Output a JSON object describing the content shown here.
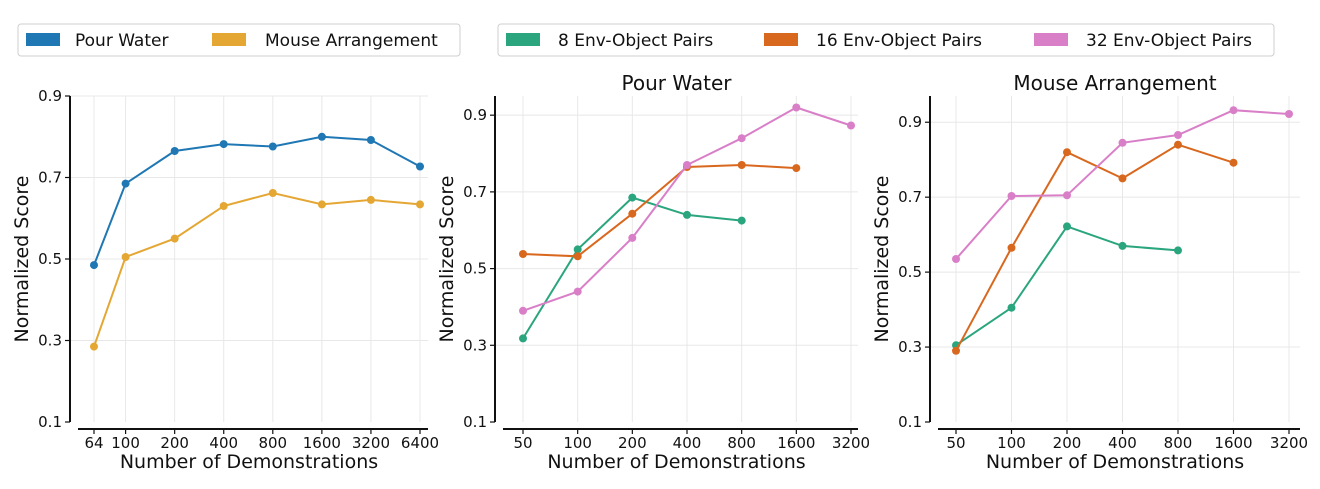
{
  "legends": [
    {
      "items": [
        {
          "label": "Pour Water",
          "color": "#1f77b4"
        },
        {
          "label": "Mouse Arrangement",
          "color": "#e5a734"
        }
      ]
    },
    {
      "items": [
        {
          "label": "8 Env-Object Pairs",
          "color": "#2aa57e"
        },
        {
          "label": "16 Env-Object Pairs",
          "color": "#d9681f"
        },
        {
          "label": "32 Env-Object Pairs",
          "color": "#d97fc8"
        }
      ]
    }
  ],
  "chart_data": [
    {
      "type": "line",
      "title": "",
      "xlabel": "Number of Demonstrations",
      "ylabel": "Normalized Score",
      "categories": [
        "64",
        "100",
        "200",
        "400",
        "800",
        "1600",
        "3200",
        "6400"
      ],
      "x_scale": "log",
      "yticks": [
        "0.1",
        "0.3",
        "0.5",
        "0.7",
        "0.9"
      ],
      "ylim": [
        0.1,
        0.9
      ],
      "grid": true,
      "series": [
        {
          "name": "Pour Water",
          "color": "#1f77b4",
          "values": [
            0.485,
            0.685,
            0.765,
            0.782,
            0.776,
            0.8,
            0.792,
            0.727
          ]
        },
        {
          "name": "Mouse Arrangement",
          "color": "#e5a734",
          "values": [
            0.285,
            0.505,
            0.55,
            0.63,
            0.662,
            0.634,
            0.645,
            0.634
          ]
        }
      ]
    },
    {
      "type": "line",
      "title": "Pour Water",
      "xlabel": "Number of Demonstrations",
      "ylabel": "Normalized Score",
      "categories": [
        "50",
        "100",
        "200",
        "400",
        "800",
        "1600",
        "3200"
      ],
      "x_scale": "log",
      "yticks": [
        "0.1",
        "0.3",
        "0.5",
        "0.7",
        "0.9"
      ],
      "ylim": [
        0.1,
        0.95
      ],
      "grid": true,
      "series": [
        {
          "name": "8 Env-Object Pairs",
          "color": "#2aa57e",
          "values": [
            0.318,
            0.55,
            0.685,
            0.64,
            0.625,
            null,
            null
          ]
        },
        {
          "name": "16 Env-Object Pairs",
          "color": "#d9681f",
          "values": [
            0.538,
            0.532,
            0.643,
            0.765,
            0.77,
            0.762,
            null
          ]
        },
        {
          "name": "32 Env-Object Pairs",
          "color": "#d97fc8",
          "values": [
            0.39,
            0.44,
            0.58,
            0.77,
            0.84,
            0.92,
            0.873
          ]
        }
      ]
    },
    {
      "type": "line",
      "title": "Mouse Arrangement",
      "xlabel": "Number of Demonstrations",
      "ylabel": "Normalized Score",
      "categories": [
        "50",
        "100",
        "200",
        "400",
        "800",
        "1600",
        "3200"
      ],
      "x_scale": "log",
      "yticks": [
        "0.1",
        "0.3",
        "0.5",
        "0.7",
        "0.9"
      ],
      "ylim": [
        0.1,
        0.97
      ],
      "grid": true,
      "series": [
        {
          "name": "8 Env-Object Pairs",
          "color": "#2aa57e",
          "values": [
            0.305,
            0.405,
            0.622,
            0.57,
            0.558,
            null,
            null
          ]
        },
        {
          "name": "16 Env-Object Pairs",
          "color": "#d9681f",
          "values": [
            0.29,
            0.565,
            0.82,
            0.75,
            0.84,
            0.792,
            null
          ]
        },
        {
          "name": "32 Env-Object Pairs",
          "color": "#d97fc8",
          "values": [
            0.535,
            0.703,
            0.705,
            0.845,
            0.866,
            0.932,
            0.922
          ]
        }
      ]
    }
  ]
}
